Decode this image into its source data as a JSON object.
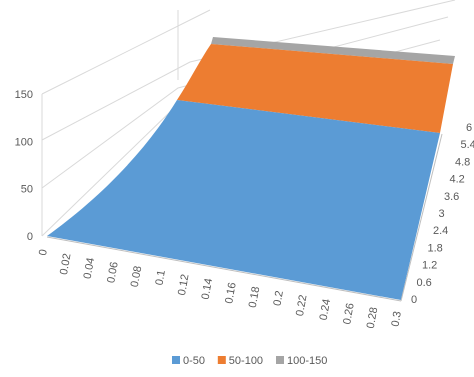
{
  "chart_data": {
    "type": "surface",
    "title": "",
    "x_ticks": [
      "0",
      "0.02",
      "0.04",
      "0.06",
      "0.08",
      "0.1",
      "0.12",
      "0.14",
      "0.16",
      "0.18",
      "0.2",
      "0.22",
      "0.24",
      "0.26",
      "0.28",
      "0.3"
    ],
    "y_ticks": [
      "0",
      "0.6",
      "1.2",
      "1.8",
      "2.4",
      "3",
      "3.6",
      "4.2",
      "4.8",
      "5.4",
      "6"
    ],
    "z_ticks": [
      "0",
      "50",
      "100",
      "150"
    ],
    "z_range": [
      0,
      150
    ],
    "surface_profile": {
      "x": [
        0,
        0.02,
        0.04,
        0.06,
        0.08,
        0.1,
        0.12,
        0.14,
        0.16,
        0.18,
        0.2,
        0.22,
        0.24,
        0.26,
        0.28,
        0.3
      ],
      "z": [
        0,
        5,
        12,
        22,
        36,
        55,
        80,
        108,
        138,
        160,
        165,
        166,
        167,
        168,
        169,
        170
      ],
      "note_constant_along_y": true
    },
    "legend": {
      "placement": "bottom",
      "entries": [
        {
          "label": "0-50",
          "color": "#5b9bd5"
        },
        {
          "label": "50-100",
          "color": "#ed7d31"
        },
        {
          "label": "100-150",
          "color": "#a5a5a5"
        }
      ]
    }
  }
}
